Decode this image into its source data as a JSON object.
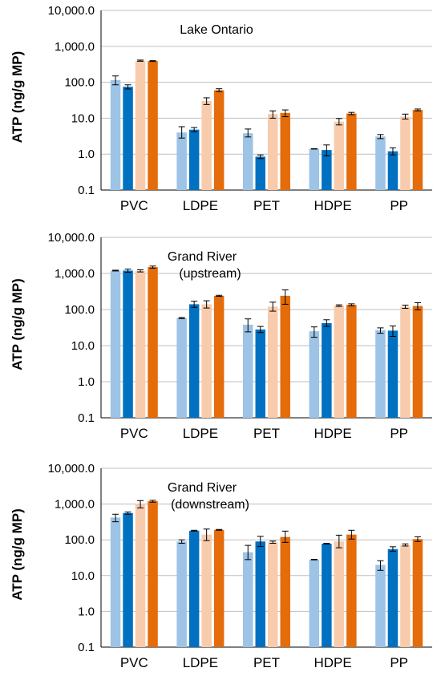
{
  "chart_data": [
    {
      "type": "bar",
      "title": "Lake Ontario",
      "subtitle": "",
      "ylabel": "ATP (ng/g MP)",
      "xlabel": "",
      "yscale": "log",
      "ylim": [
        0.1,
        10000
      ],
      "yticks": [
        "10,000.0",
        "1,000.0",
        "100.0",
        "10.0",
        "1.0",
        "0.1"
      ],
      "grid": true,
      "categories": [
        "PVC",
        "LDPE",
        "PET",
        "HDPE",
        "PP"
      ],
      "colors": [
        "#9dc3e6",
        "#0070c0",
        "#f8cbad",
        "#e46c0a"
      ],
      "series": [
        {
          "values": [
            115,
            4.0,
            3.8,
            1.4,
            3.1
          ],
          "err": [
            [
              85,
              150
            ],
            [
              2.8,
              5.8
            ],
            [
              3.0,
              5.0
            ],
            [
              1.38,
              1.42
            ],
            [
              2.7,
              3.5
            ]
          ]
        },
        {
          "values": [
            75,
            4.8,
            0.85,
            1.3,
            1.2
          ],
          "err": [
            [
              65,
              85
            ],
            [
              4.2,
              5.5
            ],
            [
              0.75,
              0.95
            ],
            [
              0.9,
              1.8
            ],
            [
              0.95,
              1.5
            ]
          ]
        },
        {
          "values": [
            400,
            30,
            13,
            8.0,
            11
          ],
          "err": [
            [
              385,
              415
            ],
            [
              24,
              37
            ],
            [
              10,
              16
            ],
            [
              6.5,
              9.8
            ],
            [
              9.5,
              13
            ]
          ]
        },
        {
          "values": [
            390,
            60,
            14,
            13.5,
            17
          ],
          "err": [
            [
              380,
              400
            ],
            [
              55,
              66
            ],
            [
              11,
              17
            ],
            [
              12.5,
              14.5
            ],
            [
              16,
              18
            ]
          ]
        }
      ]
    },
    {
      "type": "bar",
      "title": "Grand River",
      "subtitle": "(upstream)",
      "ylabel": "ATP (ng/g MP)",
      "xlabel": "",
      "yscale": "log",
      "ylim": [
        0.1,
        10000
      ],
      "yticks": [
        "10,000.0",
        "1,000.0",
        "100.0",
        "10.0",
        "1.0",
        "0.1"
      ],
      "grid": true,
      "categories": [
        "PVC",
        "LDPE",
        "PET",
        "HDPE",
        "PP"
      ],
      "colors": [
        "#9dc3e6",
        "#0070c0",
        "#f8cbad",
        "#e46c0a"
      ],
      "series": [
        {
          "values": [
            1200,
            58,
            38,
            25,
            27
          ],
          "err": [
            [
              1170,
              1230
            ],
            [
              56,
              60
            ],
            [
              24,
              55
            ],
            [
              17,
              33
            ],
            [
              22,
              31
            ]
          ]
        },
        {
          "values": [
            1200,
            140,
            28,
            42,
            26
          ],
          "err": [
            [
              1080,
              1320
            ],
            [
              115,
              170
            ],
            [
              23,
              34
            ],
            [
              34,
              52
            ],
            [
              18,
              35
            ]
          ]
        },
        {
          "values": [
            1180,
            140,
            120,
            128,
            120
          ],
          "err": [
            [
              1100,
              1260
            ],
            [
              110,
              175
            ],
            [
              90,
              160
            ],
            [
              122,
              135
            ],
            [
              108,
              132
            ]
          ]
        },
        {
          "values": [
            1500,
            240,
            240,
            135,
            125
          ],
          "err": [
            [
              1400,
              1600
            ],
            [
              232,
              248
            ],
            [
              140,
              350
            ],
            [
              126,
              144
            ],
            [
              98,
              155
            ]
          ]
        }
      ]
    },
    {
      "type": "bar",
      "title": "Grand River",
      "subtitle": "(downstream)",
      "ylabel": "ATP (ng/g MP)",
      "xlabel": "",
      "yscale": "log",
      "ylim": [
        0.1,
        10000
      ],
      "yticks": [
        "10,000.0",
        "1,000.0",
        "100.0",
        "10.0",
        "1.0",
        "0.1"
      ],
      "grid": true,
      "categories": [
        "PVC",
        "LDPE",
        "PET",
        "HDPE",
        "PP"
      ],
      "colors": [
        "#9dc3e6",
        "#0070c0",
        "#f8cbad",
        "#e46c0a"
      ],
      "series": [
        {
          "values": [
            420,
            90,
            45,
            28,
            20
          ],
          "err": [
            [
              320,
              520
            ],
            [
              80,
              100
            ],
            [
              28,
              70
            ],
            [
              27.5,
              28.5
            ],
            [
              14,
              26
            ]
          ]
        },
        {
          "values": [
            560,
            180,
            90,
            78,
            55
          ],
          "err": [
            [
              520,
              600
            ],
            [
              175,
              185
            ],
            [
              65,
              125
            ],
            [
              76,
              80
            ],
            [
              48,
              64
            ]
          ]
        },
        {
          "values": [
            1000,
            140,
            85,
            90,
            72
          ],
          "err": [
            [
              780,
              1250
            ],
            [
              95,
              200
            ],
            [
              80,
              92
            ],
            [
              60,
              135
            ],
            [
              67,
              77
            ]
          ]
        },
        {
          "values": [
            1200,
            190,
            120,
            140,
            105
          ],
          "err": [
            [
              1130,
              1270
            ],
            [
              185,
              195
            ],
            [
              85,
              175
            ],
            [
              105,
              185
            ],
            [
              90,
              122
            ]
          ]
        }
      ]
    }
  ]
}
